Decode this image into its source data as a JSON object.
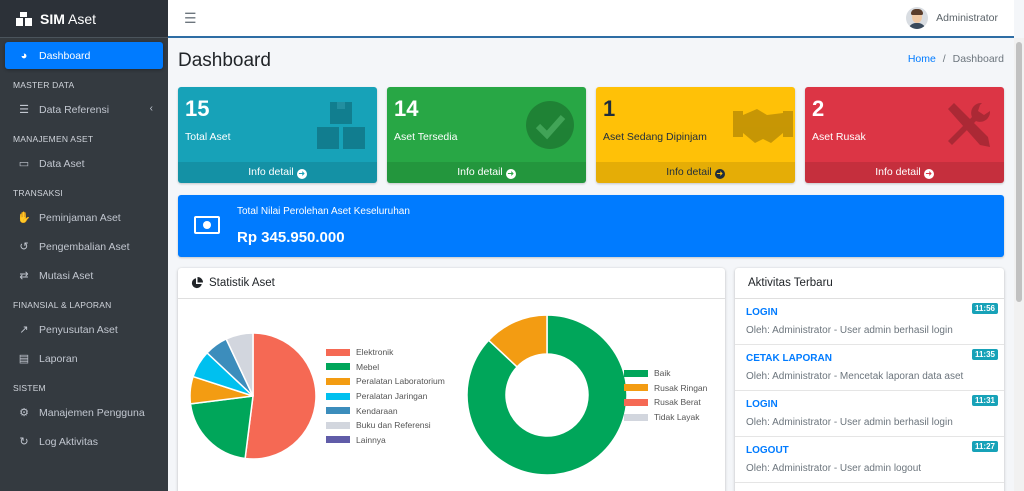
{
  "brand": {
    "bold": "SIM",
    "light": " Aset"
  },
  "sidebar": {
    "items": [
      {
        "type": "item",
        "label": "Dashboard",
        "icon": "tachometer-icon",
        "glyph": "◕",
        "active": true
      },
      {
        "type": "header",
        "label": "MASTER DATA"
      },
      {
        "type": "item",
        "label": "Data Referensi",
        "icon": "database-icon",
        "glyph": "☰",
        "arrow": "‹"
      },
      {
        "type": "header",
        "label": "MANAJEMEN ASET"
      },
      {
        "type": "item",
        "label": "Data Aset",
        "icon": "desktop-icon",
        "glyph": "▭"
      },
      {
        "type": "header",
        "label": "TRANSAKSI"
      },
      {
        "type": "item",
        "label": "Peminjaman Aset",
        "icon": "handshake-icon",
        "glyph": "✋"
      },
      {
        "type": "item",
        "label": "Pengembalian Aset",
        "icon": "undo-icon",
        "glyph": "↺"
      },
      {
        "type": "item",
        "label": "Mutasi Aset",
        "icon": "exchange-icon",
        "glyph": "⇄"
      },
      {
        "type": "header",
        "label": "FINANSIAL & LAPORAN"
      },
      {
        "type": "item",
        "label": "Penyusutan Aset",
        "icon": "chart-line-icon",
        "glyph": "↗"
      },
      {
        "type": "item",
        "label": "Laporan",
        "icon": "file-icon",
        "glyph": "▤"
      },
      {
        "type": "header",
        "label": "SISTEM"
      },
      {
        "type": "item",
        "label": "Manajemen Pengguna",
        "icon": "users-cog-icon",
        "glyph": "⚙"
      },
      {
        "type": "item",
        "label": "Log Aktivitas",
        "icon": "history-icon",
        "glyph": "↻"
      }
    ]
  },
  "topbar": {
    "menu_icon": "☰",
    "user_name": "Administrator"
  },
  "page": {
    "title": "Dashboard",
    "breadcrumb_home": "Home",
    "breadcrumb_sep": "/",
    "breadcrumb_current": "Dashboard"
  },
  "stats": [
    {
      "value": "15",
      "label": "Total Aset",
      "footer": "Info detail",
      "color": "#17a2b8",
      "icon": "boxes-icon",
      "text_color": "#ffffff"
    },
    {
      "value": "14",
      "label": "Aset Tersedia",
      "footer": "Info detail",
      "color": "#28a745",
      "icon": "check-circle-icon",
      "text_color": "#ffffff"
    },
    {
      "value": "1",
      "label": "Aset Sedang Dipinjam",
      "footer": "Info detail",
      "color": "#ffc107",
      "icon": "handshake-icon",
      "text_color": "#1f2d3d"
    },
    {
      "value": "2",
      "label": "Aset Rusak",
      "footer": "Info detail",
      "color": "#dc3545",
      "icon": "tools-icon",
      "text_color": "#ffffff"
    }
  ],
  "total_value": {
    "label": "Total Nilai Perolehan Aset Keseluruhan",
    "amount": "Rp 345.950.000"
  },
  "statistik": {
    "title": "Statistik Aset"
  },
  "chart_data": [
    {
      "type": "pie",
      "categories": [
        "Elektronik",
        "Mebel",
        "Peralatan Laboratorium",
        "Peralatan Jaringan",
        "Kendaraan",
        "Buku dan Referensi",
        "Lainnya"
      ],
      "values": [
        52,
        21,
        7,
        7,
        6,
        7,
        0
      ],
      "colors": [
        "#f56954",
        "#00a65a",
        "#f39c12",
        "#00c0ef",
        "#3c8dbc",
        "#d2d6de",
        "#605ca8"
      ]
    },
    {
      "type": "pie",
      "categories": [
        "Baik",
        "Rusak Ringan",
        "Rusak Berat",
        "Tidak Layak"
      ],
      "values": [
        87,
        13,
        0,
        0
      ],
      "colors": [
        "#00a65a",
        "#f39c12",
        "#f56954",
        "#d2d6de"
      ],
      "donut": true
    }
  ],
  "activity": {
    "title": "Aktivitas Terbaru",
    "items": [
      {
        "title": "LOGIN",
        "desc": "Oleh: Administrator - User admin berhasil login",
        "time": "11:56"
      },
      {
        "title": "CETAK LAPORAN",
        "desc": "Oleh: Administrator - Mencetak laporan data aset",
        "time": "11:35"
      },
      {
        "title": "LOGIN",
        "desc": "Oleh: Administrator - User admin berhasil login",
        "time": "11:31"
      },
      {
        "title": "LOGOUT",
        "desc": "Oleh: Administrator - User admin logout",
        "time": "11:27"
      }
    ]
  }
}
